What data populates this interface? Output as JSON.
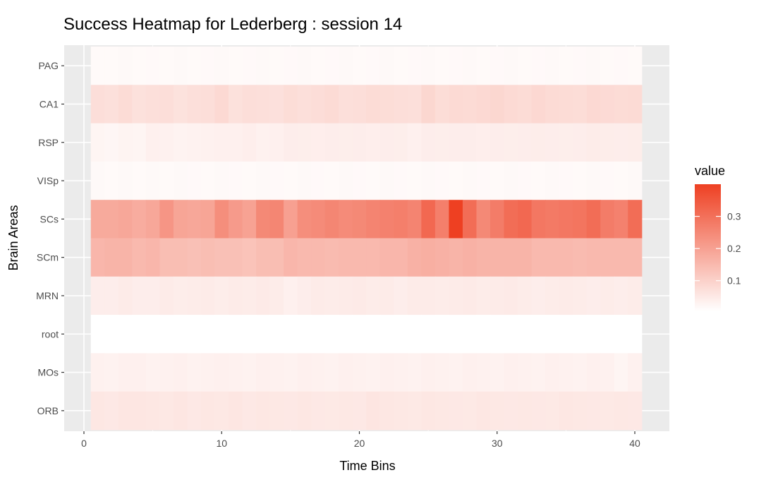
{
  "chart_data": {
    "type": "heatmap",
    "title": "Success Heatmap for Lederberg : session 14",
    "xlabel": "Time Bins",
    "ylabel": "Brain Areas",
    "xlim": [
      0,
      42
    ],
    "x_ticks": [
      "0",
      "10",
      "20",
      "30",
      "40"
    ],
    "x_tick_values": [
      0,
      10,
      20,
      30,
      40
    ],
    "x": [
      1,
      2,
      3,
      4,
      5,
      6,
      7,
      8,
      9,
      10,
      11,
      12,
      13,
      14,
      15,
      16,
      17,
      18,
      19,
      20,
      21,
      22,
      23,
      24,
      25,
      26,
      27,
      28,
      29,
      30,
      31,
      32,
      33,
      34,
      35,
      36,
      37,
      38,
      39,
      40
    ],
    "rows": [
      "PAG",
      "CA1",
      "RSP",
      "VISp",
      "SCs",
      "SCm",
      "MRN",
      "root",
      "MOs",
      "ORB"
    ],
    "values": [
      [
        0.01,
        0.01,
        0.012,
        0.01,
        0.011,
        0.01,
        0.012,
        0.01,
        0.011,
        0.012,
        0.01,
        0.011,
        0.012,
        0.01,
        0.011,
        0.012,
        0.01,
        0.011,
        0.012,
        0.01,
        0.011,
        0.012,
        0.01,
        0.011,
        0.012,
        0.01,
        0.011,
        0.012,
        0.01,
        0.011,
        0.012,
        0.01,
        0.011,
        0.012,
        0.01,
        0.011,
        0.012,
        0.01,
        0.011,
        0.01
      ],
      [
        0.065,
        0.062,
        0.07,
        0.06,
        0.064,
        0.066,
        0.058,
        0.063,
        0.065,
        0.075,
        0.06,
        0.066,
        0.064,
        0.061,
        0.068,
        0.063,
        0.067,
        0.072,
        0.064,
        0.065,
        0.07,
        0.068,
        0.066,
        0.064,
        0.08,
        0.068,
        0.074,
        0.072,
        0.075,
        0.08,
        0.074,
        0.07,
        0.078,
        0.072,
        0.07,
        0.068,
        0.075,
        0.073,
        0.07,
        0.072
      ],
      [
        0.02,
        0.018,
        0.022,
        0.02,
        0.03,
        0.028,
        0.024,
        0.025,
        0.028,
        0.03,
        0.03,
        0.033,
        0.028,
        0.03,
        0.035,
        0.034,
        0.033,
        0.035,
        0.034,
        0.035,
        0.033,
        0.035,
        0.034,
        0.03,
        0.035,
        0.034,
        0.035,
        0.035,
        0.033,
        0.035,
        0.034,
        0.035,
        0.036,
        0.035,
        0.034,
        0.035,
        0.038,
        0.036,
        0.035,
        0.036
      ],
      [
        0.012,
        0.01,
        0.012,
        0.01,
        0.012,
        0.01,
        0.012,
        0.011,
        0.01,
        0.012,
        0.011,
        0.01,
        0.012,
        0.011,
        0.01,
        0.012,
        0.011,
        0.01,
        0.012,
        0.011,
        0.01,
        0.012,
        0.011,
        0.01,
        0.012,
        0.011,
        0.01,
        0.012,
        0.011,
        0.01,
        0.012,
        0.011,
        0.01,
        0.012,
        0.011,
        0.01,
        0.012,
        0.011,
        0.01,
        0.012
      ],
      [
        0.17,
        0.17,
        0.175,
        0.165,
        0.175,
        0.21,
        0.18,
        0.175,
        0.18,
        0.225,
        0.2,
        0.185,
        0.235,
        0.24,
        0.19,
        0.225,
        0.23,
        0.24,
        0.23,
        0.235,
        0.245,
        0.25,
        0.255,
        0.245,
        0.3,
        0.255,
        0.38,
        0.29,
        0.235,
        0.26,
        0.29,
        0.3,
        0.27,
        0.265,
        0.27,
        0.275,
        0.29,
        0.26,
        0.25,
        0.29
      ],
      [
        0.145,
        0.15,
        0.15,
        0.14,
        0.145,
        0.13,
        0.13,
        0.125,
        0.13,
        0.125,
        0.125,
        0.12,
        0.13,
        0.13,
        0.145,
        0.14,
        0.14,
        0.135,
        0.14,
        0.14,
        0.14,
        0.145,
        0.145,
        0.155,
        0.16,
        0.155,
        0.15,
        0.155,
        0.15,
        0.15,
        0.15,
        0.15,
        0.14,
        0.14,
        0.14,
        0.135,
        0.14,
        0.14,
        0.14,
        0.14
      ],
      [
        0.035,
        0.035,
        0.04,
        0.035,
        0.035,
        0.04,
        0.036,
        0.038,
        0.04,
        0.036,
        0.04,
        0.038,
        0.042,
        0.038,
        0.03,
        0.035,
        0.04,
        0.038,
        0.04,
        0.042,
        0.038,
        0.04,
        0.035,
        0.04,
        0.04,
        0.038,
        0.04,
        0.042,
        0.038,
        0.04,
        0.042,
        0.038,
        0.035,
        0.038,
        0.04,
        0.038,
        0.035,
        0.038,
        0.035,
        0.038
      ],
      [
        0.0,
        0.0,
        0.0,
        0.0,
        0.0,
        0.0,
        0.0,
        0.0,
        0.0,
        0.0,
        0.0,
        0.0,
        0.0,
        0.0,
        0.0,
        0.0,
        0.0,
        0.0,
        0.0,
        0.0,
        0.0,
        0.0,
        0.0,
        0.0,
        0.0,
        0.0,
        0.0,
        0.0,
        0.0,
        0.0,
        0.0,
        0.0,
        0.0,
        0.0,
        0.0,
        0.0,
        0.0,
        0.0,
        0.0,
        0.0
      ],
      [
        0.028,
        0.025,
        0.03,
        0.03,
        0.025,
        0.028,
        0.03,
        0.026,
        0.028,
        0.03,
        0.028,
        0.026,
        0.03,
        0.028,
        0.026,
        0.03,
        0.028,
        0.026,
        0.03,
        0.028,
        0.026,
        0.03,
        0.028,
        0.026,
        0.03,
        0.028,
        0.026,
        0.03,
        0.028,
        0.026,
        0.03,
        0.028,
        0.026,
        0.03,
        0.028,
        0.026,
        0.03,
        0.028,
        0.02,
        0.028
      ],
      [
        0.048,
        0.045,
        0.05,
        0.05,
        0.048,
        0.046,
        0.05,
        0.045,
        0.048,
        0.046,
        0.05,
        0.045,
        0.048,
        0.046,
        0.045,
        0.048,
        0.045,
        0.044,
        0.046,
        0.045,
        0.052,
        0.048,
        0.046,
        0.044,
        0.048,
        0.046,
        0.045,
        0.044,
        0.048,
        0.046,
        0.045,
        0.046,
        0.045,
        0.044,
        0.048,
        0.046,
        0.045,
        0.044,
        0.046,
        0.045
      ]
    ],
    "color_scale": {
      "low": "#ffffff",
      "high": "#ee4022",
      "min": 0.0,
      "max": 0.38
    },
    "legend": {
      "title": "value",
      "placement": "right",
      "labels": [
        "0.3",
        "0.2",
        "0.1"
      ],
      "label_values": [
        0.3,
        0.2,
        0.1
      ]
    },
    "grid": true
  }
}
